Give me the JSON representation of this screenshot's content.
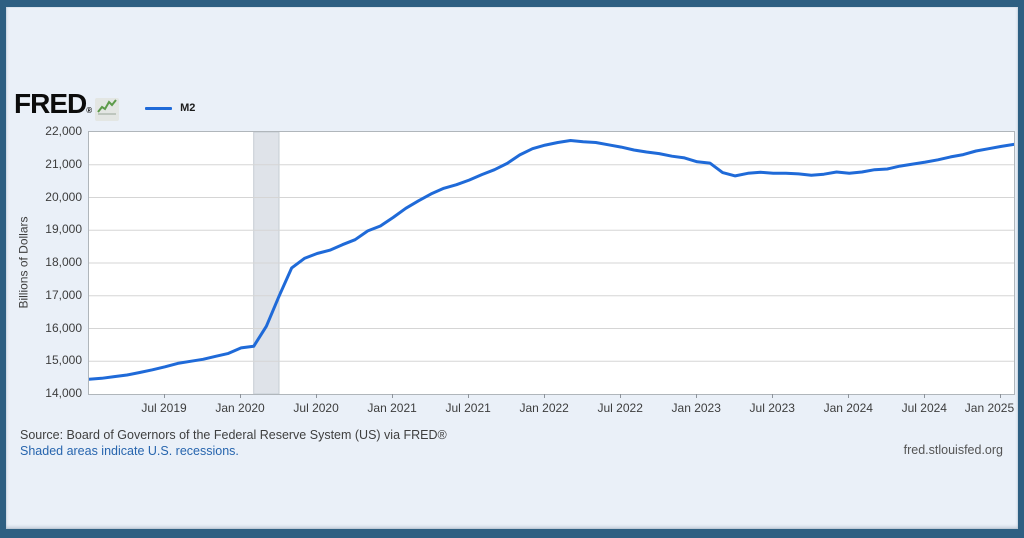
{
  "header": {
    "logo_text": "FRED",
    "registered_mark": "®",
    "legend": [
      {
        "label": "M2",
        "color": "#1f6ad8"
      }
    ]
  },
  "footer": {
    "source_text": "Source: Board of Governors of the Federal Reserve System (US) via FRED®",
    "recession_note": "Shaded areas indicate U.S. recessions.",
    "site_url": "fred.stlouisfed.org"
  },
  "colors": {
    "frame_border": "#2e5f82",
    "page_background": "#eaf0f8",
    "plot_background": "#ffffff",
    "plot_border": "#b0b6bb",
    "gridline": "#d5d5d5",
    "recession_band_fill": "#dfe3e9",
    "recession_band_edge": "#c6ccd3",
    "series_line": "#1f6ad8",
    "logo_icon_line": "#5d9b4a",
    "link_blue": "#2765ae"
  },
  "chart_data": {
    "type": "line",
    "title": "",
    "xlabel": "",
    "ylabel": "Billions of Dollars",
    "ylim": [
      14000,
      22000
    ],
    "grid": "horizontal",
    "legend_position": "top-left",
    "y_ticks": [
      {
        "v": 22000,
        "label": "22,000"
      },
      {
        "v": 21000,
        "label": "21,000"
      },
      {
        "v": 20000,
        "label": "20,000"
      },
      {
        "v": 19000,
        "label": "19,000"
      },
      {
        "v": 18000,
        "label": "18,000"
      },
      {
        "v": 17000,
        "label": "17,000"
      },
      {
        "v": 16000,
        "label": "16,000"
      },
      {
        "v": 15000,
        "label": "15,000"
      },
      {
        "v": 14000,
        "label": "14,000"
      }
    ],
    "x_ticks": [
      {
        "m": "2019-07",
        "label": "Jul 2019"
      },
      {
        "m": "2020-01",
        "label": "Jan 2020"
      },
      {
        "m": "2020-07",
        "label": "Jul 2020"
      },
      {
        "m": "2021-01",
        "label": "Jan 2021"
      },
      {
        "m": "2021-07",
        "label": "Jul 2021"
      },
      {
        "m": "2022-01",
        "label": "Jan 2022"
      },
      {
        "m": "2022-07",
        "label": "Jul 2022"
      },
      {
        "m": "2023-01",
        "label": "Jan 2023"
      },
      {
        "m": "2023-07",
        "label": "Jul 2023"
      },
      {
        "m": "2024-01",
        "label": "Jan 2024"
      },
      {
        "m": "2024-07",
        "label": "Jul 2024"
      },
      {
        "m": "2025-01",
        "label": "Jan 2025"
      }
    ],
    "recession_bands": [
      {
        "start": "2020-02",
        "end": "2020-04"
      }
    ],
    "series": [
      {
        "name": "M2",
        "color": "#1f6ad8",
        "x": [
          "2019-01",
          "2019-02",
          "2019-03",
          "2019-04",
          "2019-05",
          "2019-06",
          "2019-07",
          "2019-08",
          "2019-09",
          "2019-10",
          "2019-11",
          "2019-12",
          "2020-01",
          "2020-02",
          "2020-03",
          "2020-04",
          "2020-05",
          "2020-06",
          "2020-07",
          "2020-08",
          "2020-09",
          "2020-10",
          "2020-11",
          "2020-12",
          "2021-01",
          "2021-02",
          "2021-03",
          "2021-04",
          "2021-05",
          "2021-06",
          "2021-07",
          "2021-08",
          "2021-09",
          "2021-10",
          "2021-11",
          "2021-12",
          "2022-01",
          "2022-02",
          "2022-03",
          "2022-04",
          "2022-05",
          "2022-06",
          "2022-07",
          "2022-08",
          "2022-09",
          "2022-10",
          "2022-11",
          "2022-12",
          "2023-01",
          "2023-02",
          "2023-03",
          "2023-04",
          "2023-05",
          "2023-06",
          "2023-07",
          "2023-08",
          "2023-09",
          "2023-10",
          "2023-11",
          "2023-12",
          "2024-01",
          "2024-02",
          "2024-03",
          "2024-04",
          "2024-05",
          "2024-06",
          "2024-07",
          "2024-08",
          "2024-09",
          "2024-10",
          "2024-11",
          "2024-12",
          "2025-01",
          "2025-02"
        ],
        "values": [
          14448,
          14480,
          14530,
          14580,
          14655,
          14740,
          14830,
          14935,
          15000,
          15060,
          15150,
          15240,
          15408,
          15457,
          16070,
          16990,
          17850,
          18140,
          18290,
          18390,
          18560,
          18710,
          18980,
          19130,
          19390,
          19670,
          19900,
          20110,
          20280,
          20390,
          20530,
          20700,
          20850,
          21040,
          21300,
          21490,
          21600,
          21680,
          21740,
          21700,
          21680,
          21610,
          21540,
          21450,
          21390,
          21340,
          21260,
          21210,
          21090,
          21050,
          20760,
          20660,
          20740,
          20770,
          20740,
          20740,
          20720,
          20680,
          20710,
          20780,
          20740,
          20780,
          20850,
          20870,
          20960,
          21020,
          21080,
          21150,
          21240,
          21310,
          21420,
          21490,
          21560,
          21620
        ]
      }
    ]
  }
}
